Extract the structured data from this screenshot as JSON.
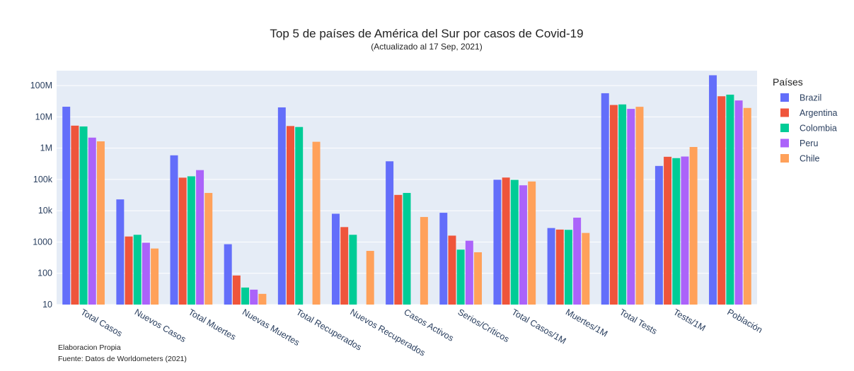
{
  "chart_data": {
    "type": "bar",
    "title": "Top 5 de países de América del Sur por casos de Covid-19",
    "subtitle": "(Actualizado al 17 Sep, 2021)",
    "yscale": "log",
    "ylim": [
      10,
      300000000
    ],
    "ytick_values": [
      10,
      100,
      1000,
      10000,
      100000,
      1000000,
      10000000,
      100000000
    ],
    "ytick_labels": [
      "10",
      "100",
      "1000",
      "10k",
      "100k",
      "1M",
      "10M",
      "100M"
    ],
    "categories": [
      "Total Casos",
      "Nuevos Casos",
      "Total Muertes",
      "Nuevas Muertes",
      "Total Recuperados",
      "Nuevos Recuperados",
      "Casos Activos",
      "Serios/Críticos",
      "Total Casos/1M",
      "Muertes/1M",
      "Total Tests",
      "Tests/1M",
      "Población"
    ],
    "legend_title": "Países",
    "legend_position": "right",
    "series": [
      {
        "name": "Brazil",
        "color": "#636efa",
        "values": [
          21100000,
          23000,
          590000,
          850,
          20100000,
          8000,
          380000,
          8600,
          98000,
          2800,
          57000000,
          270000,
          214000000
        ]
      },
      {
        "name": "Argentina",
        "color": "#ef553b",
        "values": [
          5240000,
          1500,
          114000,
          85,
          5100000,
          3000,
          32000,
          1600,
          115000,
          2500,
          24000000,
          530000,
          45600000
        ]
      },
      {
        "name": "Colombia",
        "color": "#00cc96",
        "values": [
          4940000,
          1700,
          126000,
          35,
          4750000,
          1700,
          37000,
          570,
          97000,
          2450,
          25000000,
          480000,
          51300000
        ]
      },
      {
        "name": "Peru",
        "color": "#ab63fa",
        "values": [
          2170000,
          950,
          199000,
          30,
          null,
          null,
          null,
          1100,
          65000,
          6000,
          18000000,
          540000,
          33500000
        ]
      },
      {
        "name": "Chile",
        "color": "#ffa15a",
        "values": [
          1650000,
          620,
          37000,
          22,
          1600000,
          520,
          6300,
          470,
          86000,
          1950,
          21000000,
          1090000,
          19300000
        ]
      }
    ]
  },
  "notes": {
    "line1": "Elaboracion Propia",
    "line2": "Fuente: Datos de Worldometers (2021)"
  }
}
